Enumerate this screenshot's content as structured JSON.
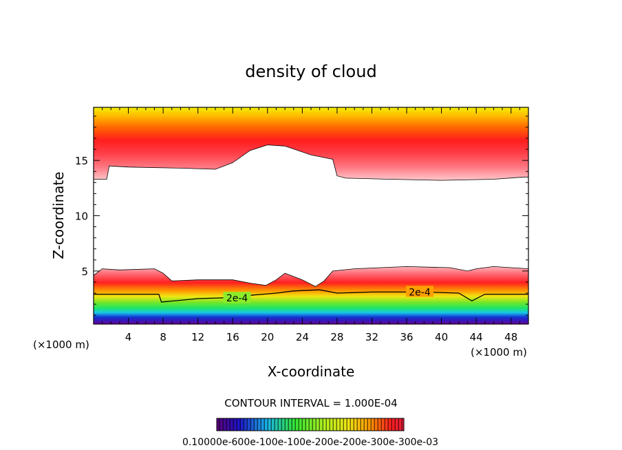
{
  "chart_data": {
    "type": "heatmap",
    "title": "density of cloud",
    "xlabel": "X-coordinate",
    "ylabel": "Z-coordinate",
    "x_unit_left": "(×1000 m)",
    "x_unit_right": "(×1000 m)",
    "xlim": [
      0,
      50
    ],
    "ylim": [
      0.2,
      19.8
    ],
    "x_ticks": [
      4,
      8,
      12,
      16,
      20,
      24,
      28,
      32,
      36,
      40,
      44,
      48
    ],
    "y_ticks": [
      5,
      10,
      15
    ],
    "contour_label": "2e-4",
    "contour_interval_text": "CONTOUR INTERVAL = 1.000E-04",
    "colorbar_labels_text": "0.10000e-600e-100e-100e-200e-200e-300e-300e-03",
    "colorbar_range": [
      0.0001,
      0.0003
    ],
    "colormap": [
      "#5a0078",
      "#1a1ad0",
      "#19c8e6",
      "#32e632",
      "#b4f01e",
      "#f0e614",
      "#ff8c00",
      "#ff1e1e",
      "#e61e3c"
    ],
    "upper_layer_bottom": [
      [
        0,
        13.3
      ],
      [
        1.5,
        13.3
      ],
      [
        1.8,
        14.5
      ],
      [
        4,
        14.4
      ],
      [
        10,
        14.3
      ],
      [
        14,
        14.2
      ],
      [
        16,
        14.8
      ],
      [
        18,
        15.9
      ],
      [
        20,
        16.4
      ],
      [
        22,
        16.3
      ],
      [
        25,
        15.5
      ],
      [
        27.5,
        15.1
      ],
      [
        28,
        13.6
      ],
      [
        29,
        13.4
      ],
      [
        34,
        13.3
      ],
      [
        40,
        13.2
      ],
      [
        46,
        13.3
      ],
      [
        49.5,
        13.5
      ],
      [
        50,
        13.5
      ]
    ],
    "lower_layer_top": [
      [
        0,
        4.6
      ],
      [
        1,
        5.2
      ],
      [
        3,
        5.1
      ],
      [
        7,
        5.2
      ],
      [
        8,
        4.8
      ],
      [
        9,
        4.1
      ],
      [
        12,
        4.2
      ],
      [
        16,
        4.2
      ],
      [
        18,
        3.9
      ],
      [
        19.8,
        3.7
      ],
      [
        21,
        4.2
      ],
      [
        22,
        4.8
      ],
      [
        24,
        4.2
      ],
      [
        25.5,
        3.6
      ],
      [
        26.5,
        4.1
      ],
      [
        27.5,
        5.0
      ],
      [
        30,
        5.2
      ],
      [
        36,
        5.4
      ],
      [
        41,
        5.3
      ],
      [
        43,
        5.0
      ],
      [
        44,
        5.2
      ],
      [
        46,
        5.4
      ],
      [
        48,
        5.3
      ],
      [
        50,
        5.2
      ]
    ],
    "contour_2e-4": [
      [
        0,
        2.9
      ],
      [
        7.5,
        2.9
      ],
      [
        7.8,
        2.2
      ],
      [
        12,
        2.5
      ],
      [
        16,
        2.6
      ],
      [
        18,
        2.8
      ],
      [
        21,
        3.0
      ],
      [
        23,
        3.2
      ],
      [
        26,
        3.3
      ],
      [
        28,
        3.0
      ],
      [
        32,
        3.1
      ],
      [
        38,
        3.1
      ],
      [
        42,
        3.0
      ],
      [
        43.5,
        2.3
      ],
      [
        45,
        2.9
      ],
      [
        50,
        2.9
      ]
    ]
  }
}
